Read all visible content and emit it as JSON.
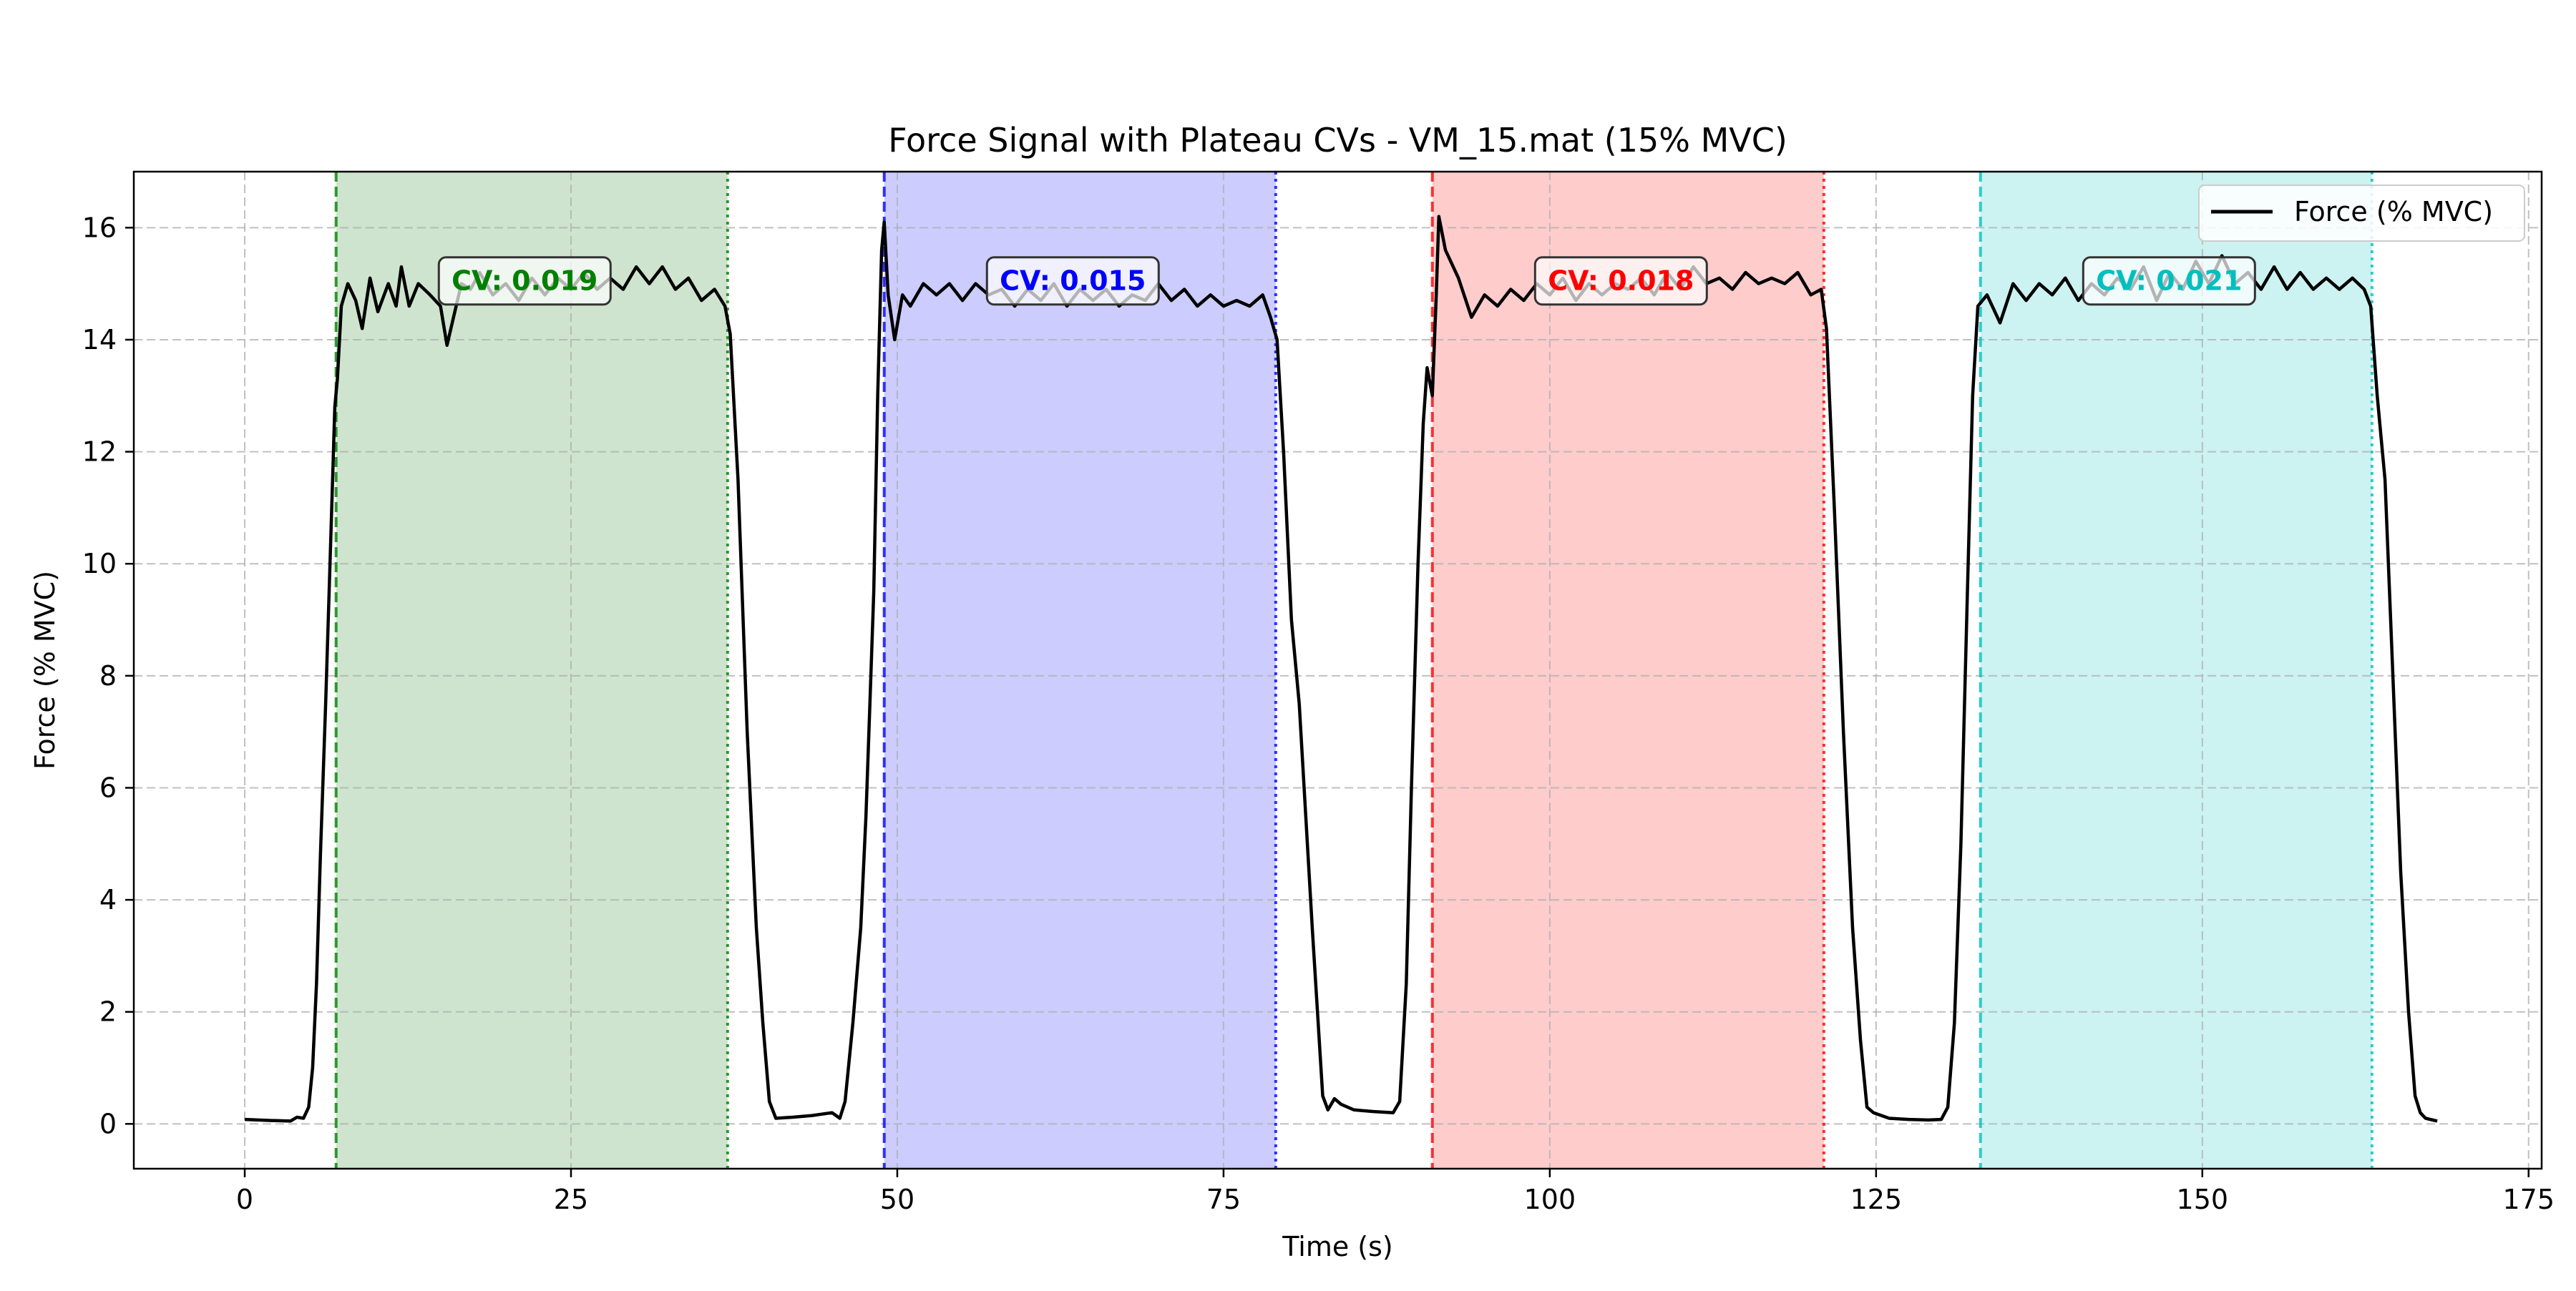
{
  "chart_data": {
    "type": "line",
    "title": "Force Signal with Plateau CVs - VM_15.mat (15% MVC)",
    "xlabel": "Time (s)",
    "ylabel": "Force (% MVC)",
    "xlim": [
      -8.5,
      176
    ],
    "ylim": [
      -0.8,
      17.0
    ],
    "xticks": [
      0,
      25,
      50,
      75,
      100,
      125,
      150,
      175
    ],
    "yticks": [
      0,
      2,
      4,
      6,
      8,
      10,
      12,
      14,
      16
    ],
    "grid": true,
    "legend": {
      "position": "top-right",
      "entries": [
        "Force (% MVC)"
      ]
    },
    "series": [
      {
        "name": "Force (% MVC)",
        "color": "#000000",
        "points": [
          [
            0,
            0.08
          ],
          [
            2,
            0.06
          ],
          [
            3.5,
            0.05
          ],
          [
            4,
            0.12
          ],
          [
            4.5,
            0.1
          ],
          [
            4.9,
            0.3
          ],
          [
            5.2,
            1.0
          ],
          [
            5.5,
            2.5
          ],
          [
            5.8,
            4.8
          ],
          [
            6.2,
            7.5
          ],
          [
            6.6,
            10.5
          ],
          [
            6.9,
            12.8
          ],
          [
            7.1,
            13.3
          ],
          [
            7.4,
            14.6
          ],
          [
            7.9,
            15.0
          ],
          [
            8.5,
            14.7
          ],
          [
            9,
            14.2
          ],
          [
            9.6,
            15.1
          ],
          [
            10.2,
            14.5
          ],
          [
            11,
            15.0
          ],
          [
            11.6,
            14.6
          ],
          [
            12,
            15.3
          ],
          [
            12.6,
            14.6
          ],
          [
            13.3,
            15.0
          ],
          [
            14.2,
            14.8
          ],
          [
            15,
            14.6
          ],
          [
            15.5,
            13.9
          ],
          [
            16,
            14.4
          ],
          [
            16.6,
            15.0
          ],
          [
            17.3,
            14.9
          ],
          [
            18,
            15.2
          ],
          [
            19,
            14.8
          ],
          [
            20,
            15.0
          ],
          [
            21,
            14.7
          ],
          [
            22,
            15.1
          ],
          [
            23,
            14.8
          ],
          [
            24,
            15.1
          ],
          [
            25,
            14.9
          ],
          [
            26,
            15.2
          ],
          [
            27,
            14.9
          ],
          [
            28,
            15.1
          ],
          [
            29,
            14.9
          ],
          [
            30,
            15.3
          ],
          [
            31,
            15.0
          ],
          [
            32,
            15.3
          ],
          [
            33,
            14.9
          ],
          [
            34,
            15.1
          ],
          [
            35,
            14.7
          ],
          [
            36,
            14.9
          ],
          [
            36.8,
            14.6
          ],
          [
            37.2,
            14.1
          ],
          [
            37.8,
            11.5
          ],
          [
            38.5,
            7.0
          ],
          [
            39.2,
            3.5
          ],
          [
            39.7,
            1.8
          ],
          [
            40.2,
            0.4
          ],
          [
            40.7,
            0.1
          ],
          [
            42,
            0.12
          ],
          [
            43.5,
            0.15
          ],
          [
            45,
            0.2
          ],
          [
            45.6,
            0.1
          ],
          [
            46,
            0.4
          ],
          [
            46.6,
            1.8
          ],
          [
            47.2,
            3.5
          ],
          [
            47.6,
            5.5
          ],
          [
            47.9,
            7.5
          ],
          [
            48.2,
            9.5
          ],
          [
            48.5,
            13.0
          ],
          [
            48.8,
            15.6
          ],
          [
            49,
            16.1
          ],
          [
            49.3,
            14.8
          ],
          [
            49.8,
            14.0
          ],
          [
            50.4,
            14.8
          ],
          [
            51,
            14.6
          ],
          [
            52,
            15.0
          ],
          [
            53,
            14.8
          ],
          [
            54,
            15.0
          ],
          [
            55,
            14.7
          ],
          [
            56,
            15.0
          ],
          [
            57,
            14.8
          ],
          [
            58,
            14.9
          ],
          [
            59,
            14.6
          ],
          [
            60,
            14.9
          ],
          [
            61,
            14.7
          ],
          [
            62,
            15.0
          ],
          [
            63,
            14.6
          ],
          [
            64,
            14.9
          ],
          [
            65,
            14.7
          ],
          [
            66,
            14.9
          ],
          [
            67,
            14.6
          ],
          [
            68,
            14.8
          ],
          [
            69,
            14.7
          ],
          [
            70,
            15.0
          ],
          [
            71,
            14.7
          ],
          [
            72,
            14.9
          ],
          [
            73,
            14.6
          ],
          [
            74,
            14.8
          ],
          [
            75,
            14.6
          ],
          [
            76,
            14.7
          ],
          [
            77,
            14.6
          ],
          [
            78,
            14.8
          ],
          [
            78.6,
            14.4
          ],
          [
            79.1,
            14.0
          ],
          [
            79.6,
            12.0
          ],
          [
            80.2,
            9.0
          ],
          [
            80.8,
            7.5
          ],
          [
            81.3,
            5.5
          ],
          [
            81.8,
            3.5
          ],
          [
            82.2,
            2.0
          ],
          [
            82.6,
            0.5
          ],
          [
            83,
            0.25
          ],
          [
            83.5,
            0.45
          ],
          [
            84,
            0.35
          ],
          [
            85,
            0.25
          ],
          [
            86.5,
            0.22
          ],
          [
            88,
            0.2
          ],
          [
            88.5,
            0.4
          ],
          [
            89,
            2.5
          ],
          [
            89.4,
            6.0
          ],
          [
            89.9,
            10.0
          ],
          [
            90.3,
            12.5
          ],
          [
            90.6,
            13.5
          ],
          [
            91,
            13.0
          ],
          [
            91.3,
            14.8
          ],
          [
            91.5,
            16.2
          ],
          [
            92,
            15.6
          ],
          [
            93,
            15.1
          ],
          [
            94,
            14.4
          ],
          [
            95,
            14.8
          ],
          [
            96,
            14.6
          ],
          [
            97,
            14.9
          ],
          [
            98,
            14.7
          ],
          [
            99,
            15.0
          ],
          [
            100,
            14.8
          ],
          [
            101,
            15.1
          ],
          [
            102,
            14.7
          ],
          [
            103,
            15.0
          ],
          [
            104,
            14.8
          ],
          [
            105,
            15.0
          ],
          [
            106,
            14.9
          ],
          [
            107,
            15.1
          ],
          [
            108,
            14.8
          ],
          [
            109,
            15.2
          ],
          [
            110,
            14.9
          ],
          [
            111,
            15.3
          ],
          [
            112,
            15.0
          ],
          [
            113,
            15.1
          ],
          [
            114,
            14.9
          ],
          [
            115,
            15.2
          ],
          [
            116,
            15.0
          ],
          [
            117,
            15.1
          ],
          [
            118,
            15.0
          ],
          [
            119,
            15.2
          ],
          [
            120,
            14.8
          ],
          [
            120.8,
            14.9
          ],
          [
            121.2,
            14.2
          ],
          [
            121.8,
            11.0
          ],
          [
            122.5,
            7.0
          ],
          [
            123.2,
            3.5
          ],
          [
            123.8,
            1.5
          ],
          [
            124.3,
            0.3
          ],
          [
            124.8,
            0.2
          ],
          [
            126,
            0.1
          ],
          [
            127.5,
            0.08
          ],
          [
            129,
            0.07
          ],
          [
            130,
            0.08
          ],
          [
            130.5,
            0.3
          ],
          [
            131,
            1.8
          ],
          [
            131.5,
            5.0
          ],
          [
            132,
            9.5
          ],
          [
            132.4,
            13.0
          ],
          [
            132.8,
            14.6
          ],
          [
            133.5,
            14.8
          ],
          [
            134.5,
            14.3
          ],
          [
            135.5,
            15.0
          ],
          [
            136.5,
            14.7
          ],
          [
            137.5,
            15.0
          ],
          [
            138.5,
            14.8
          ],
          [
            139.5,
            15.1
          ],
          [
            140.5,
            14.7
          ],
          [
            141.5,
            15.0
          ],
          [
            142.5,
            14.8
          ],
          [
            143.5,
            15.1
          ],
          [
            144.5,
            14.9
          ],
          [
            145.5,
            15.3
          ],
          [
            146.5,
            14.7
          ],
          [
            147.5,
            15.2
          ],
          [
            148.5,
            14.9
          ],
          [
            149.5,
            15.4
          ],
          [
            150.5,
            15.0
          ],
          [
            151.5,
            15.5
          ],
          [
            152.5,
            15.0
          ],
          [
            153.5,
            15.2
          ],
          [
            154.5,
            14.9
          ],
          [
            155.5,
            15.3
          ],
          [
            156.5,
            14.9
          ],
          [
            157.5,
            15.2
          ],
          [
            158.5,
            14.9
          ],
          [
            159.5,
            15.1
          ],
          [
            160.5,
            14.9
          ],
          [
            161.5,
            15.1
          ],
          [
            162.4,
            14.9
          ],
          [
            162.9,
            14.6
          ],
          [
            163.4,
            13.0
          ],
          [
            164,
            11.5
          ],
          [
            164.6,
            8.0
          ],
          [
            165.2,
            4.5
          ],
          [
            165.8,
            2.0
          ],
          [
            166.3,
            0.5
          ],
          [
            166.7,
            0.2
          ],
          [
            167.1,
            0.1
          ],
          [
            168,
            0.05
          ]
        ]
      }
    ],
    "plateaus": [
      {
        "start": 7,
        "end": 37,
        "label": "CV: 0.019",
        "color": "#008000",
        "fill": "#cee4ce"
      },
      {
        "start": 49,
        "end": 79,
        "label": "CV: 0.015",
        "color": "#0000ff",
        "fill": "#ccccff"
      },
      {
        "start": 91,
        "end": 121,
        "label": "CV: 0.018",
        "color": "#ff0000",
        "fill": "#ffcccc"
      },
      {
        "start": 133,
        "end": 163,
        "label": "CV: 0.021",
        "color": "#00bfbf",
        "fill": "#ccf2f2"
      }
    ]
  }
}
